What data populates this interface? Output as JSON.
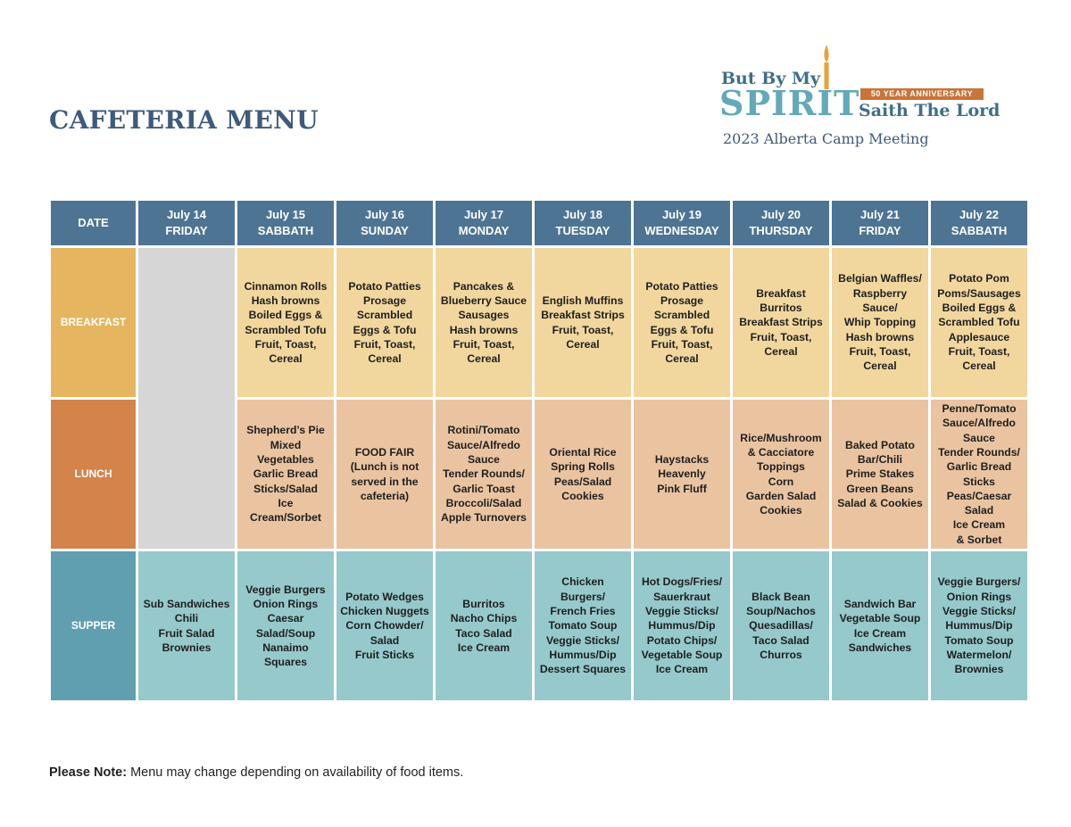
{
  "title": "CAFETERIA MENU",
  "logo": {
    "line1": "But By My",
    "spirit": "SPIRIT",
    "anniversary": "50 YEAR ANNIVERSARY",
    "line2": "Saith The Lord",
    "subtitle": "2023 Alberta Camp Meeting"
  },
  "colors": {
    "header": "#4e7494",
    "breakfast": "#f1d79e",
    "breakfast_label": "#e5b65f",
    "lunch": "#eac4a1",
    "lunch_label": "#d4834b",
    "supper": "#96c9cc",
    "supper_label": "#5f9fb0",
    "empty": "#d6d6d6"
  },
  "table": {
    "date_header": "DATE",
    "days": [
      {
        "date": "July 14",
        "day": "FRIDAY"
      },
      {
        "date": "July 15",
        "day": "SABBATH"
      },
      {
        "date": "July 16",
        "day": "SUNDAY"
      },
      {
        "date": "July 17",
        "day": "MONDAY"
      },
      {
        "date": "July 18",
        "day": "TUESDAY"
      },
      {
        "date": "July 19",
        "day": "WEDNESDAY"
      },
      {
        "date": "July 20",
        "day": "THURSDAY"
      },
      {
        "date": "July 21",
        "day": "FRIDAY"
      },
      {
        "date": "July 22",
        "day": "SABBATH"
      }
    ],
    "meals": [
      {
        "label": "BREAKFAST",
        "items": [
          "Cinnamon Rolls\nHash browns\nBoiled Eggs &\nScrambled Tofu\nFruit, Toast,\nCereal",
          "Potato Patties\nProsage\nScrambled\nEggs & Tofu\nFruit, Toast,\nCereal",
          "Pancakes &\nBlueberry Sauce\nSausages\nHash browns\nFruit, Toast,\nCereal",
          "English Muffins\nBreakfast Strips\nFruit, Toast,\nCereal",
          "Potato Patties\nProsage\nScrambled\nEggs & Tofu\nFruit, Toast,\nCereal",
          "Breakfast Burritos\nBreakfast Strips\nFruit, Toast,\nCereal",
          "Belgian Waffles/\nRaspberry Sauce/\nWhip Topping\nHash browns\nFruit, Toast,\nCereal",
          "Potato Pom\nPoms/Sausages\nBoiled Eggs &\nScrambled Tofu\nApplesauce\nFruit, Toast,\nCereal"
        ]
      },
      {
        "label": "LUNCH",
        "items": [
          "Shepherd’s Pie\nMixed Vegetables\nGarlic Bread\nSticks/Salad\nIce Cream/Sorbet",
          "FOOD FAIR\n(Lunch is not\nserved in the\ncafeteria)",
          "Rotini/Tomato\nSauce/Alfredo\nSauce\nTender Rounds/\nGarlic Toast\nBroccoli/Salad\nApple Turnovers",
          "Oriental Rice\nSpring Rolls\nPeas/Salad\nCookies",
          "Haystacks\nHeavenly\nPink Fluff",
          "Rice/Mushroom\n& Cacciatore\nToppings\nCorn\nGarden Salad\nCookies",
          "Baked Potato\nBar/Chili\nPrime Stakes\nGreen Beans\nSalad & Cookies",
          "Penne/Tomato\nSauce/Alfredo\nSauce\nTender Rounds/\nGarlic Bread Sticks\nPeas/Caesar Salad\nIce Cream\n& Sorbet"
        ]
      },
      {
        "label": "SUPPER",
        "items": [
          "Sub Sandwiches\nChili\nFruit Salad\nBrownies",
          "Veggie Burgers\nOnion Rings\nCaesar Salad/Soup\nNanaimo Squares",
          "Potato Wedges\nChicken Nuggets\nCorn Chowder/\nSalad\nFruit Sticks",
          "Burritos\nNacho Chips\nTaco Salad\nIce Cream",
          "Chicken Burgers/\nFrench Fries\nTomato Soup\nVeggie Sticks/\nHummus/Dip\nDessert Squares",
          "Hot Dogs/Fries/\nSauerkraut\nVeggie Sticks/\nHummus/Dip\nPotato Chips/\nVegetable Soup\nIce Cream",
          "Black Bean\nSoup/Nachos\nQuesadillas/\nTaco Salad\nChurros",
          "Sandwich Bar\nVegetable Soup\nIce Cream\nSandwiches",
          "Veggie Burgers/\nOnion Rings\nVeggie Sticks/\nHummus/Dip\nTomato Soup\nWatermelon/\nBrownies"
        ]
      }
    ]
  },
  "note": {
    "bold": "Please Note:",
    "text": " Menu may change depending on availability of food items."
  }
}
